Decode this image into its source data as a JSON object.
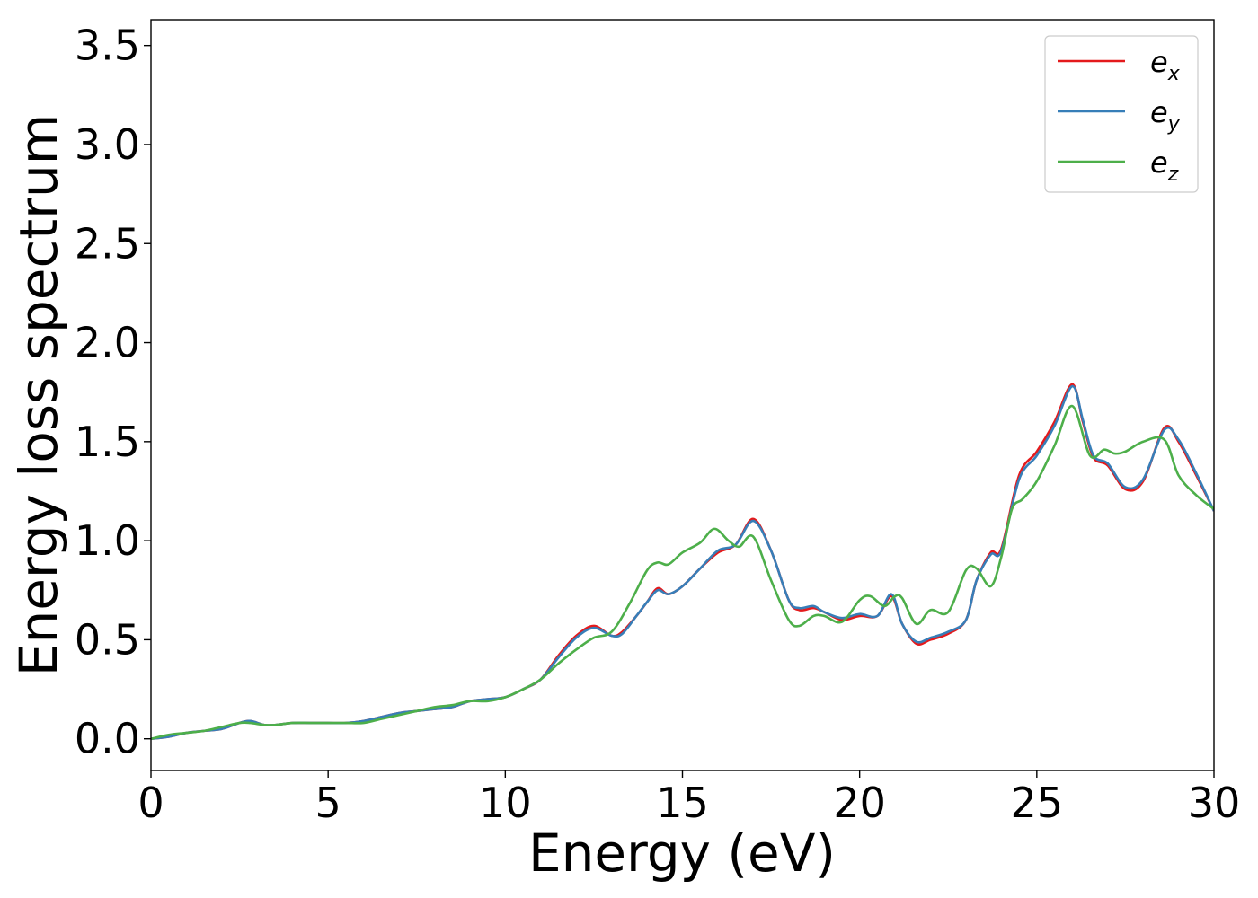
{
  "chart_data": {
    "type": "line",
    "title": "",
    "xlabel": "Energy (eV)",
    "ylabel": "Energy loss spectrum",
    "xlim": [
      0,
      30
    ],
    "ylim": [
      -0.16,
      3.63
    ],
    "xticks": [
      0,
      5,
      10,
      15,
      20,
      25,
      30
    ],
    "xtick_labels": [
      "0",
      "5",
      "10",
      "15",
      "20",
      "25",
      "30"
    ],
    "yticks": [
      0.0,
      0.5,
      1.0,
      1.5,
      2.0,
      2.5,
      3.0,
      3.5
    ],
    "ytick_labels": [
      "0.0",
      "0.5",
      "1.0",
      "1.5",
      "2.0",
      "2.5",
      "3.0",
      "3.5"
    ],
    "grid": false,
    "legend_position": "top-right",
    "series": [
      {
        "name": "e_x",
        "label_base": "e",
        "label_sub": "x",
        "color": "#e41a1c",
        "x": [
          0,
          0.5,
          1,
          1.5,
          2,
          2.5,
          2.8,
          3.2,
          3.5,
          4,
          4.5,
          5,
          5.5,
          6,
          6.5,
          7,
          7.5,
          8,
          8.5,
          9,
          9.5,
          10,
          10.5,
          11,
          11.5,
          12,
          12.5,
          13,
          13.3,
          13.7,
          14,
          14.3,
          14.6,
          15,
          15.5,
          16,
          16.5,
          17,
          17.5,
          18,
          18.3,
          18.7,
          19,
          19.5,
          20,
          20.5,
          20.9,
          21.2,
          21.6,
          22,
          22.5,
          23,
          23.3,
          23.7,
          24,
          24.5,
          25,
          25.5,
          26,
          26.3,
          26.6,
          27,
          27.5,
          28,
          28.6,
          29,
          29.5,
          30
        ],
        "y": [
          0.0,
          0.01,
          0.03,
          0.04,
          0.05,
          0.08,
          0.09,
          0.07,
          0.07,
          0.08,
          0.08,
          0.08,
          0.08,
          0.09,
          0.11,
          0.13,
          0.14,
          0.15,
          0.16,
          0.19,
          0.2,
          0.21,
          0.25,
          0.3,
          0.42,
          0.52,
          0.57,
          0.52,
          0.54,
          0.62,
          0.69,
          0.76,
          0.73,
          0.77,
          0.86,
          0.94,
          0.98,
          1.11,
          0.95,
          0.7,
          0.65,
          0.66,
          0.64,
          0.6,
          0.62,
          0.62,
          0.72,
          0.58,
          0.48,
          0.5,
          0.53,
          0.6,
          0.8,
          0.94,
          0.96,
          1.33,
          1.45,
          1.6,
          1.79,
          1.6,
          1.42,
          1.38,
          1.26,
          1.3,
          1.57,
          1.5,
          1.33,
          1.15
        ]
      },
      {
        "name": "e_y",
        "label_base": "e",
        "label_sub": "y",
        "color": "#377eb8",
        "x": [
          0,
          0.5,
          1,
          1.5,
          2,
          2.5,
          2.8,
          3.2,
          3.5,
          4,
          4.5,
          5,
          5.5,
          6,
          6.5,
          7,
          7.5,
          8,
          8.5,
          9,
          9.5,
          10,
          10.5,
          11,
          11.5,
          12,
          12.5,
          13,
          13.3,
          13.7,
          14,
          14.3,
          14.6,
          15,
          15.5,
          16,
          16.5,
          17,
          17.5,
          18,
          18.3,
          18.7,
          19,
          19.5,
          20,
          20.5,
          20.9,
          21.2,
          21.6,
          22,
          22.5,
          23,
          23.3,
          23.7,
          24,
          24.5,
          25,
          25.5,
          26,
          26.3,
          26.6,
          27,
          27.5,
          28,
          28.6,
          29,
          29.5,
          30
        ],
        "y": [
          0.0,
          0.01,
          0.03,
          0.04,
          0.05,
          0.08,
          0.09,
          0.07,
          0.07,
          0.08,
          0.08,
          0.08,
          0.08,
          0.09,
          0.11,
          0.13,
          0.14,
          0.15,
          0.16,
          0.19,
          0.2,
          0.21,
          0.25,
          0.3,
          0.41,
          0.51,
          0.56,
          0.52,
          0.53,
          0.62,
          0.69,
          0.75,
          0.73,
          0.77,
          0.86,
          0.95,
          0.98,
          1.1,
          0.95,
          0.7,
          0.66,
          0.67,
          0.64,
          0.61,
          0.63,
          0.62,
          0.73,
          0.58,
          0.49,
          0.51,
          0.54,
          0.6,
          0.8,
          0.93,
          0.95,
          1.31,
          1.43,
          1.58,
          1.78,
          1.61,
          1.43,
          1.39,
          1.27,
          1.31,
          1.56,
          1.51,
          1.34,
          1.15
        ]
      },
      {
        "name": "e_z",
        "label_base": "e",
        "label_sub": "z",
        "color": "#4daf4a",
        "x": [
          0,
          0.5,
          1,
          1.5,
          2,
          2.5,
          2.8,
          3.2,
          3.5,
          4,
          4.5,
          5,
          5.5,
          6,
          6.5,
          7,
          7.5,
          8,
          8.5,
          9,
          9.5,
          10,
          10.5,
          11,
          11.5,
          12,
          12.5,
          13,
          13.5,
          14,
          14.3,
          14.6,
          15,
          15.5,
          15.9,
          16.3,
          16.6,
          17,
          17.5,
          18,
          18.3,
          18.7,
          19,
          19.5,
          20,
          20.3,
          20.7,
          21,
          21.2,
          21.6,
          22,
          22.5,
          23,
          23.3,
          23.7,
          24,
          24.3,
          24.6,
          25,
          25.5,
          26,
          26.5,
          26.9,
          27.2,
          27.5,
          28,
          28.6,
          29,
          29.5,
          30
        ],
        "y": [
          0.0,
          0.02,
          0.03,
          0.04,
          0.06,
          0.08,
          0.08,
          0.07,
          0.07,
          0.08,
          0.08,
          0.08,
          0.08,
          0.08,
          0.1,
          0.12,
          0.14,
          0.16,
          0.17,
          0.19,
          0.19,
          0.21,
          0.25,
          0.3,
          0.38,
          0.45,
          0.51,
          0.54,
          0.68,
          0.85,
          0.89,
          0.88,
          0.94,
          0.99,
          1.06,
          1.0,
          0.97,
          1.02,
          0.8,
          0.6,
          0.57,
          0.62,
          0.62,
          0.59,
          0.7,
          0.72,
          0.67,
          0.72,
          0.71,
          0.58,
          0.65,
          0.64,
          0.85,
          0.86,
          0.77,
          0.92,
          1.16,
          1.21,
          1.3,
          1.48,
          1.68,
          1.43,
          1.46,
          1.44,
          1.45,
          1.5,
          1.51,
          1.33,
          1.23,
          1.16
        ]
      }
    ]
  }
}
